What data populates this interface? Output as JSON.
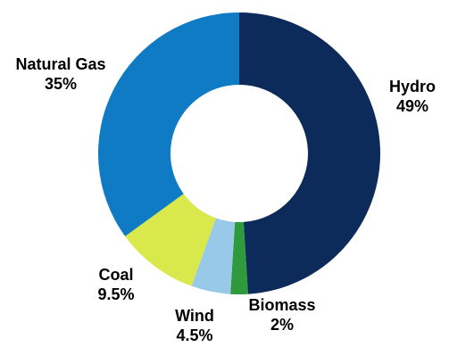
{
  "chart_data": {
    "type": "pie",
    "style": "donut",
    "categories": [
      "Hydro",
      "Biomass",
      "Wind",
      "Coal",
      "Natural Gas"
    ],
    "values": [
      49,
      2,
      4.5,
      9.5,
      35
    ],
    "value_labels": [
      "49%",
      "2%",
      "4.5%",
      "9.5%",
      "35%"
    ],
    "colors": [
      "#0c2a5a",
      "#2f9a3b",
      "#99c9e8",
      "#d9e84a",
      "#0f7bc4"
    ],
    "start_angle": "top",
    "direction": "clockwise",
    "legend": "none",
    "labels_placement": "outside"
  }
}
